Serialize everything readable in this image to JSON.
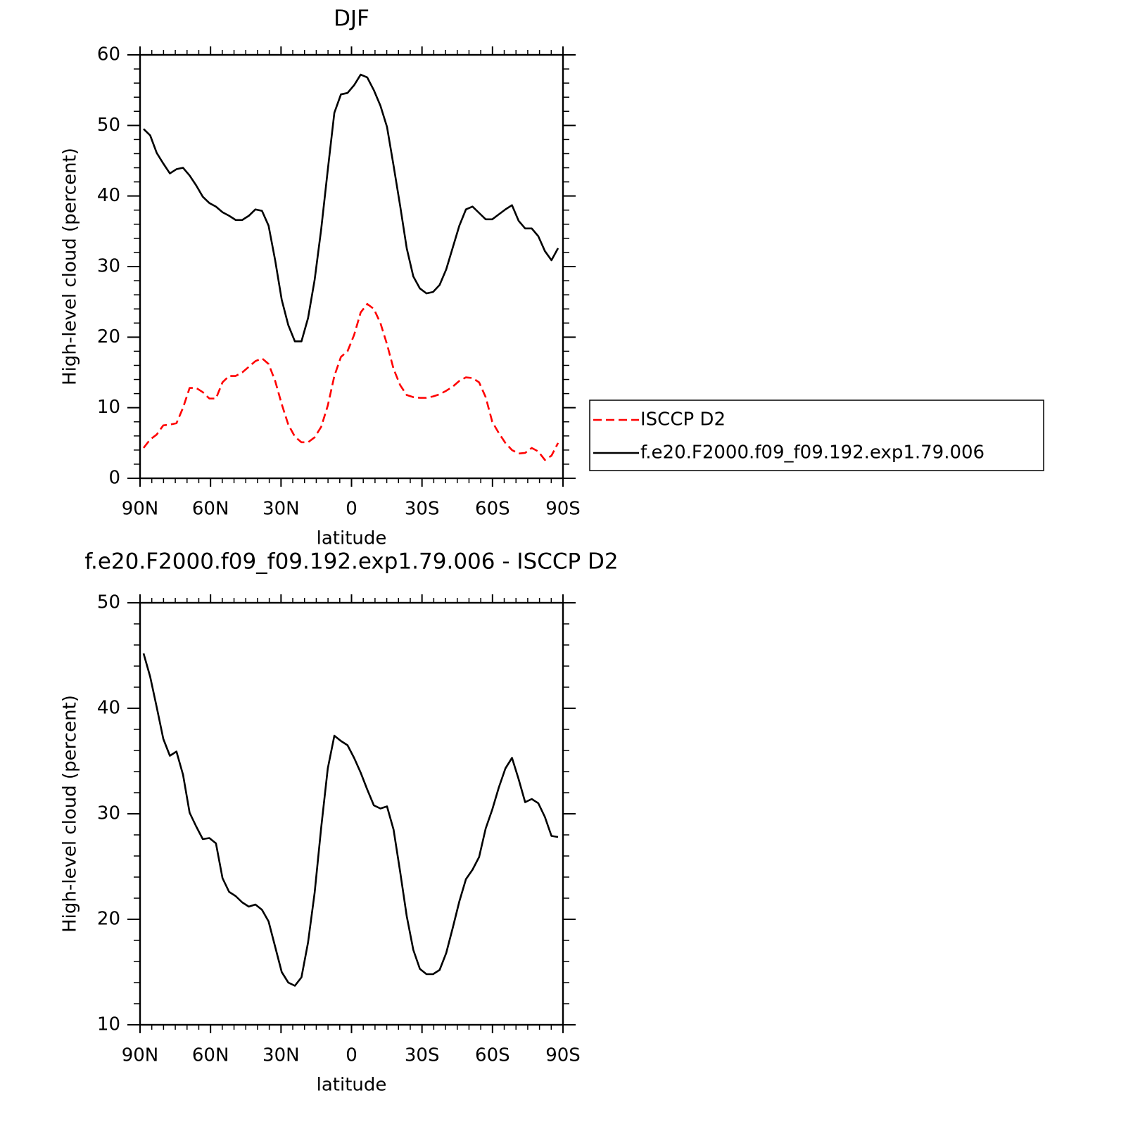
{
  "chart_data": [
    {
      "type": "line",
      "title": "DJF",
      "xlabel": "latitude",
      "ylabel": "High-level cloud (percent)",
      "x": [
        88.5,
        85.7,
        82.9,
        80.1,
        77.3,
        74.5,
        71.7,
        68.9,
        66.1,
        63.3,
        60.5,
        57.7,
        54.9,
        52.1,
        49.3,
        46.5,
        43.7,
        40.9,
        38.1,
        35.3,
        32.5,
        29.7,
        26.9,
        24.1,
        21.3,
        18.5,
        15.7,
        12.9,
        10.1,
        7.3,
        4.5,
        1.7,
        -1.1,
        -3.9,
        -6.7,
        -9.5,
        -12.3,
        -15.1,
        -17.9,
        -20.7,
        -23.5,
        -26.3,
        -29.1,
        -31.9,
        -34.7,
        -37.5,
        -40.3,
        -43.1,
        -45.9,
        -48.7,
        -51.5,
        -54.3,
        -57.1,
        -59.9,
        -62.7,
        -65.5,
        -68.3,
        -71.1,
        -73.9,
        -76.7,
        -79.5,
        -82.3,
        -85.1,
        -87.9
      ],
      "xlim": [
        90,
        -90
      ],
      "xticks": [
        {
          "value": 90,
          "label": "90N"
        },
        {
          "value": 60,
          "label": "60N"
        },
        {
          "value": 30,
          "label": "30N"
        },
        0,
        {
          "value": -30,
          "label": "30S"
        },
        {
          "value": -60,
          "label": "60S"
        },
        {
          "value": -90,
          "label": "90S"
        }
      ],
      "xminorticks": [
        85,
        80,
        75,
        70,
        65,
        55,
        50,
        45,
        40,
        35,
        25,
        20,
        15,
        10,
        5,
        -5,
        -10,
        -15,
        -20,
        -25,
        -35,
        -40,
        -45,
        -50,
        -55,
        -65,
        -70,
        -75,
        -80,
        -85
      ],
      "ylim": [
        0,
        60
      ],
      "yticks": [
        0,
        10,
        20,
        30,
        40,
        50,
        60
      ],
      "yminorticks": [
        2,
        4,
        6,
        8,
        12,
        14,
        16,
        18,
        22,
        24,
        26,
        28,
        32,
        34,
        36,
        38,
        42,
        44,
        46,
        48,
        52,
        54,
        56,
        58
      ],
      "legend": "right",
      "series": [
        {
          "name": "ISCCP D2",
          "color": "#ff0000",
          "linestyle": "dashed",
          "values": [
            4.3,
            5.5,
            6.2,
            7.5,
            7.6,
            7.8,
            10.0,
            12.8,
            12.8,
            12.2,
            11.3,
            11.3,
            13.6,
            14.5,
            14.5,
            15.0,
            15.8,
            16.6,
            17.0,
            16.2,
            13.8,
            10.5,
            7.6,
            5.9,
            5.1,
            5.1,
            5.8,
            7.3,
            10.3,
            14.5,
            17.2,
            18.0,
            20.3,
            23.5,
            24.7,
            24.0,
            22.0,
            19.0,
            15.5,
            13.2,
            11.8,
            11.5,
            11.4,
            11.4,
            11.6,
            11.9,
            12.4,
            13.0,
            13.8,
            14.3,
            14.2,
            13.6,
            11.5,
            8.0,
            6.4,
            5.0,
            4.0,
            3.5,
            3.6,
            4.3,
            3.8,
            2.6,
            3.2,
            5.0
          ]
        },
        {
          "name": "f.e20.F2000.f09_f09.192.exp1.79.006",
          "color": "#000000",
          "linestyle": "solid",
          "values": [
            49.5,
            48.6,
            46.1,
            44.6,
            43.2,
            43.8,
            44.0,
            42.9,
            41.5,
            39.9,
            39.0,
            38.5,
            37.7,
            37.2,
            36.6,
            36.6,
            37.2,
            38.1,
            37.9,
            35.8,
            30.9,
            25.3,
            21.7,
            19.4,
            19.4,
            22.7,
            28.1,
            35.3,
            43.7,
            51.8,
            54.4,
            54.6,
            55.7,
            57.2,
            56.8,
            55.0,
            52.8,
            49.8,
            44.3,
            38.6,
            32.6,
            28.6,
            26.9,
            26.2,
            26.4,
            27.4,
            29.6,
            32.7,
            35.8,
            38.1,
            38.5,
            37.6,
            36.7,
            36.7,
            37.4,
            38.1,
            38.7,
            36.5,
            35.4,
            35.4,
            34.3,
            32.2,
            30.9,
            32.6
          ]
        }
      ]
    },
    {
      "type": "line",
      "title": "f.e20.F2000.f09_f09.192.exp1.79.006 - ISCCP D2",
      "xlabel": "latitude",
      "ylabel": "High-level cloud (percent)",
      "x": [
        88.5,
        85.7,
        82.9,
        80.1,
        77.3,
        74.5,
        71.7,
        68.9,
        66.1,
        63.3,
        60.5,
        57.7,
        54.9,
        52.1,
        49.3,
        46.5,
        43.7,
        40.9,
        38.1,
        35.3,
        32.5,
        29.7,
        26.9,
        24.1,
        21.3,
        18.5,
        15.7,
        12.9,
        10.1,
        7.3,
        4.5,
        1.7,
        -1.1,
        -3.9,
        -6.7,
        -9.5,
        -12.3,
        -15.1,
        -17.9,
        -20.7,
        -23.5,
        -26.3,
        -29.1,
        -31.9,
        -34.7,
        -37.5,
        -40.3,
        -43.1,
        -45.9,
        -48.7,
        -51.5,
        -54.3,
        -57.1,
        -59.9,
        -62.7,
        -65.5,
        -68.3,
        -71.1,
        -73.9,
        -76.7,
        -79.5,
        -82.3,
        -85.1,
        -87.9
      ],
      "xlim": [
        90,
        -90
      ],
      "xticks": [
        {
          "value": 90,
          "label": "90N"
        },
        {
          "value": 60,
          "label": "60N"
        },
        {
          "value": 30,
          "label": "30N"
        },
        0,
        {
          "value": -30,
          "label": "30S"
        },
        {
          "value": -60,
          "label": "60S"
        },
        {
          "value": -90,
          "label": "90S"
        }
      ],
      "xminorticks": [
        85,
        80,
        75,
        70,
        65,
        55,
        50,
        45,
        40,
        35,
        25,
        20,
        15,
        10,
        5,
        -5,
        -10,
        -15,
        -20,
        -25,
        -35,
        -40,
        -45,
        -50,
        -55,
        -65,
        -70,
        -75,
        -80,
        -85
      ],
      "ylim": [
        10,
        50
      ],
      "yticks": [
        10,
        20,
        30,
        40,
        50
      ],
      "yminorticks": [
        12,
        14,
        16,
        18,
        22,
        24,
        26,
        28,
        32,
        34,
        36,
        38,
        42,
        44,
        46,
        48
      ],
      "series": [
        {
          "color": "#000000",
          "linestyle": "solid",
          "values": [
            45.2,
            43.0,
            40.1,
            37.1,
            35.5,
            35.9,
            33.7,
            30.1,
            28.8,
            27.6,
            27.7,
            27.2,
            23.9,
            22.6,
            22.2,
            21.6,
            21.2,
            21.4,
            20.9,
            19.8,
            17.4,
            15.0,
            14.0,
            13.7,
            14.5,
            17.8,
            22.5,
            28.7,
            34.3,
            37.4,
            36.9,
            36.5,
            35.3,
            33.9,
            32.3,
            30.8,
            30.5,
            30.7,
            28.5,
            24.5,
            20.3,
            17.1,
            15.3,
            14.8,
            14.8,
            15.2,
            16.8,
            19.2,
            21.7,
            23.8,
            24.7,
            25.9,
            28.6,
            30.4,
            32.5,
            34.3,
            35.3,
            33.3,
            31.1,
            31.4,
            31.0,
            29.7,
            27.9,
            27.8
          ]
        }
      ]
    }
  ]
}
